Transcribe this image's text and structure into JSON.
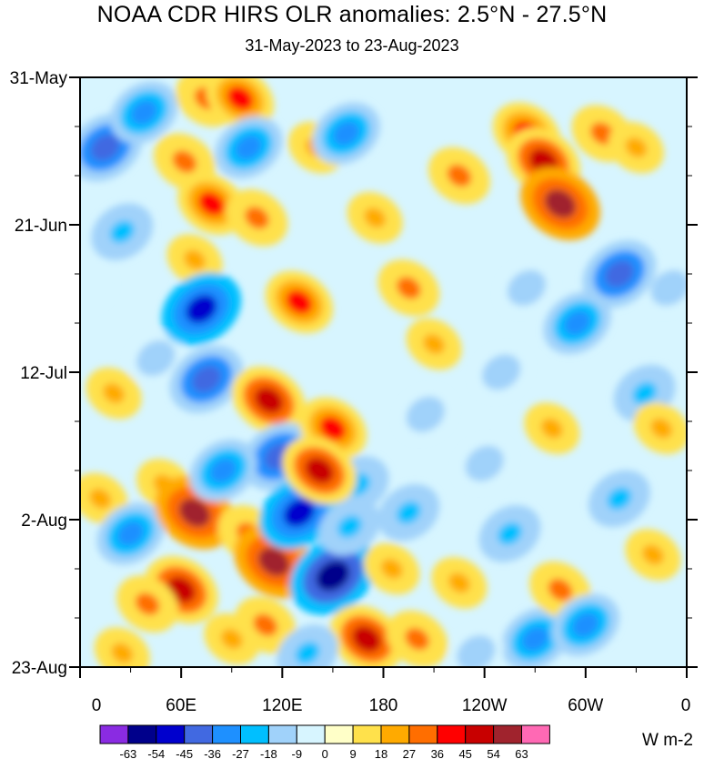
{
  "chart_data": {
    "type": "heatmap",
    "title": "NOAA CDR HIRS OLR anomalies: 2.5°N - 27.5°N",
    "subtitle": "31-May-2023 to 23-Aug-2023",
    "xlabel": "",
    "ylabel": "",
    "x_ticks": [
      "0",
      "60E",
      "120E",
      "180",
      "120W",
      "60W",
      "0"
    ],
    "y_ticks": [
      "31-May",
      "21-Jun",
      "12-Jul",
      "2-Aug",
      "23-Aug"
    ],
    "units": "W m-2",
    "colorbar_levels": [
      "-63",
      "-54",
      "-45",
      "-36",
      "-27",
      "-18",
      "-9",
      "0",
      "9",
      "18",
      "27",
      "36",
      "45",
      "54",
      "63"
    ],
    "colorbar_colors": [
      "#8a2be2",
      "#00008b",
      "#0000cd",
      "#4169e1",
      "#1e90ff",
      "#00bfff",
      "#a0d2fa",
      "#d7f5ff",
      "#ffffc8",
      "#ffe14b",
      "#ffaa00",
      "#ff6e00",
      "#ff0000",
      "#c80000",
      "#a0232d",
      "#ff69b4"
    ],
    "anomaly_blobs": [
      {
        "lon": 15,
        "day": 10,
        "value": -45
      },
      {
        "lon": 25,
        "day": 22,
        "value": -27
      },
      {
        "lon": 38,
        "day": 5,
        "value": -36
      },
      {
        "lon": 45,
        "day": 40,
        "value": -18
      },
      {
        "lon": 62,
        "day": 12,
        "value": 27
      },
      {
        "lon": 75,
        "day": 3,
        "value": 27
      },
      {
        "lon": 78,
        "day": 18,
        "value": 36
      },
      {
        "lon": 68,
        "day": 26,
        "value": 18
      },
      {
        "lon": 72,
        "day": 33,
        "value": -54
      },
      {
        "lon": 75,
        "day": 43,
        "value": -45
      },
      {
        "lon": 95,
        "day": 3,
        "value": 36
      },
      {
        "lon": 100,
        "day": 10,
        "value": -36
      },
      {
        "lon": 105,
        "day": 20,
        "value": 27
      },
      {
        "lon": 112,
        "day": 46,
        "value": 45
      },
      {
        "lon": 118,
        "day": 54,
        "value": -45
      },
      {
        "lon": 130,
        "day": 32,
        "value": 36
      },
      {
        "lon": 140,
        "day": 10,
        "value": 18
      },
      {
        "lon": 150,
        "day": 50,
        "value": 36
      },
      {
        "lon": 158,
        "day": 8,
        "value": -36
      },
      {
        "lon": 165,
        "day": 58,
        "value": -27
      },
      {
        "lon": 175,
        "day": 20,
        "value": 18
      },
      {
        "lon": 195,
        "day": 30,
        "value": 27
      },
      {
        "lon": 210,
        "day": 38,
        "value": 18
      },
      {
        "lon": 225,
        "day": 14,
        "value": 27
      },
      {
        "lon": 12,
        "day": 60,
        "value": 18
      },
      {
        "lon": 30,
        "day": 65,
        "value": -36
      },
      {
        "lon": 50,
        "day": 58,
        "value": 18
      },
      {
        "lon": 60,
        "day": 73,
        "value": 45
      },
      {
        "lon": 68,
        "day": 62,
        "value": 54
      },
      {
        "lon": 85,
        "day": 56,
        "value": -36
      },
      {
        "lon": 100,
        "day": 65,
        "value": 27
      },
      {
        "lon": 115,
        "day": 69,
        "value": 54
      },
      {
        "lon": 110,
        "day": 78,
        "value": 27
      },
      {
        "lon": 130,
        "day": 62,
        "value": -54
      },
      {
        "lon": 150,
        "day": 71,
        "value": -63
      },
      {
        "lon": 160,
        "day": 64,
        "value": -27
      },
      {
        "lon": 142,
        "day": 56,
        "value": 45
      },
      {
        "lon": 170,
        "day": 80,
        "value": 45
      },
      {
        "lon": 185,
        "day": 70,
        "value": 18
      },
      {
        "lon": 195,
        "day": 62,
        "value": -27
      },
      {
        "lon": 205,
        "day": 48,
        "value": -18
      },
      {
        "lon": 225,
        "day": 72,
        "value": 18
      },
      {
        "lon": 240,
        "day": 55,
        "value": -18
      },
      {
        "lon": 255,
        "day": 65,
        "value": -27
      },
      {
        "lon": 270,
        "day": 80,
        "value": -36
      },
      {
        "lon": 285,
        "day": 73,
        "value": 27
      },
      {
        "lon": 300,
        "day": 78,
        "value": -36
      },
      {
        "lon": 320,
        "day": 60,
        "value": -27
      },
      {
        "lon": 340,
        "day": 68,
        "value": 18
      },
      {
        "lon": 350,
        "day": 30,
        "value": -18
      },
      {
        "lon": 265,
        "day": 8,
        "value": 36
      },
      {
        "lon": 275,
        "day": 12,
        "value": 45
      },
      {
        "lon": 285,
        "day": 18,
        "value": 54
      },
      {
        "lon": 310,
        "day": 8,
        "value": 27
      },
      {
        "lon": 330,
        "day": 10,
        "value": 18
      },
      {
        "lon": 265,
        "day": 30,
        "value": -18
      },
      {
        "lon": 295,
        "day": 35,
        "value": -36
      },
      {
        "lon": 320,
        "day": 28,
        "value": -45
      },
      {
        "lon": 335,
        "day": 45,
        "value": -27
      },
      {
        "lon": 250,
        "day": 42,
        "value": -18
      },
      {
        "lon": 280,
        "day": 50,
        "value": 18
      },
      {
        "lon": 345,
        "day": 50,
        "value": 18
      },
      {
        "lon": 20,
        "day": 45,
        "value": 18
      },
      {
        "lon": 5,
        "day": 30,
        "value": -9
      },
      {
        "lon": 40,
        "day": 75,
        "value": 27
      },
      {
        "lon": 25,
        "day": 82,
        "value": 18
      },
      {
        "lon": 90,
        "day": 80,
        "value": 18
      },
      {
        "lon": 135,
        "day": 82,
        "value": -27
      },
      {
        "lon": 200,
        "day": 80,
        "value": 27
      },
      {
        "lon": 235,
        "day": 82,
        "value": -18
      }
    ]
  }
}
